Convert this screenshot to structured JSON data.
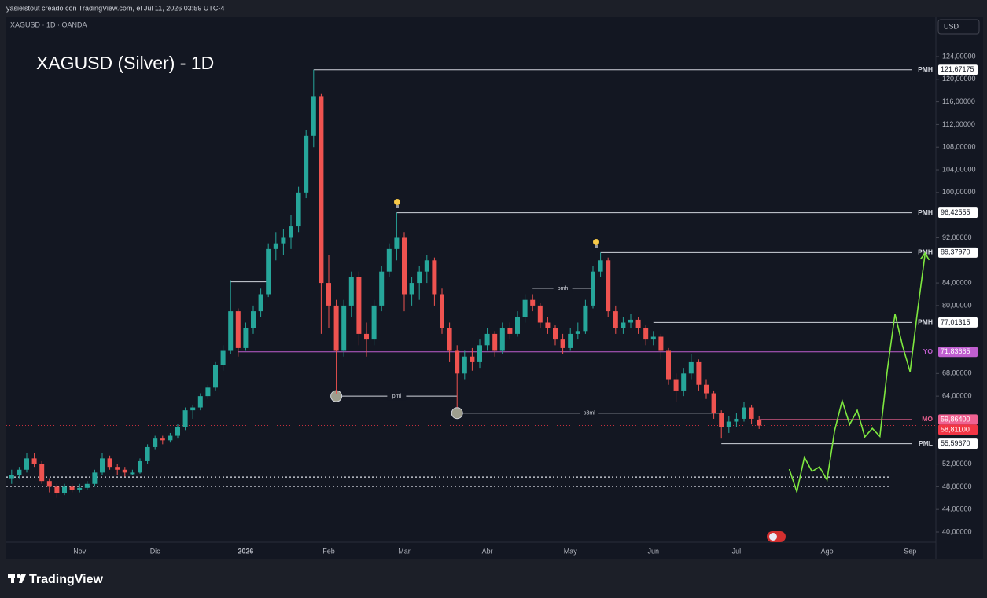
{
  "header": {
    "title": "yasielstout creado con TradingView.com, el Jul 11, 2026 03:59 UTC-4"
  },
  "symbol": "XAGUSD · 1D · OANDA",
  "currency": "USD",
  "footer": {
    "brand": "TradingView"
  },
  "chart_data": {
    "type": "candlestick",
    "title": "XAGUSD (Silver) - 1D",
    "colors": {
      "up": "#26a69a",
      "down": "#ef5350"
    },
    "categories": [
      null,
      null,
      null,
      null,
      null,
      null,
      null,
      null,
      null,
      "Nov",
      null,
      null,
      null,
      null,
      null,
      null,
      null,
      null,
      null,
      "Dic",
      null,
      null,
      null,
      null,
      null,
      null,
      null,
      null,
      null,
      null,
      null,
      "2026",
      null,
      null,
      null,
      null,
      null,
      null,
      null,
      null,
      null,
      null,
      "Feb",
      null,
      null,
      null,
      null,
      null,
      null,
      null,
      null,
      null,
      "Mar",
      null,
      null,
      null,
      null,
      null,
      null,
      null,
      null,
      null,
      null,
      "Abr",
      null,
      null,
      null,
      null,
      null,
      null,
      null,
      null,
      null,
      null,
      "May",
      null,
      null,
      null,
      null,
      null,
      null,
      null,
      null,
      null,
      null,
      "Jun",
      null,
      null,
      null,
      null,
      null,
      null,
      null,
      null,
      null,
      null,
      "Jul",
      null,
      null,
      null,
      null,
      null,
      null,
      null,
      null,
      null,
      null,
      null,
      "Ago",
      null,
      null,
      null,
      null,
      null,
      null,
      null,
      null,
      null,
      null,
      "Sep",
      null,
      null
    ],
    "ohlc": [
      [
        49.5,
        51,
        48.5,
        50
      ],
      [
        50,
        51.5,
        49.5,
        51
      ],
      [
        51,
        54,
        50.5,
        53
      ],
      [
        53,
        54,
        51.5,
        52
      ],
      [
        52,
        52.5,
        48.5,
        49
      ],
      [
        49,
        49.5,
        47,
        48
      ],
      [
        48,
        48.5,
        46,
        46.8
      ],
      [
        46.8,
        48.5,
        46.5,
        48
      ],
      [
        48,
        48.5,
        47,
        47.5
      ],
      [
        47.5,
        48.5,
        47,
        47.8
      ],
      [
        47.8,
        49,
        47.5,
        48.5
      ],
      [
        48.5,
        51,
        48,
        50.5
      ],
      [
        50.5,
        54,
        50,
        53
      ],
      [
        53,
        53.5,
        51,
        51.5
      ],
      [
        51.5,
        52,
        50,
        51
      ],
      [
        51,
        51.5,
        49.8,
        50.5
      ],
      [
        50.2,
        51,
        50,
        50.5
      ],
      [
        50.5,
        53,
        50.3,
        52.5
      ],
      [
        52.5,
        55.5,
        52,
        55
      ],
      [
        55,
        57,
        54.5,
        56.5
      ],
      [
        56.5,
        57,
        55.5,
        56.2
      ],
      [
        56.2,
        57.5,
        55.8,
        57
      ],
      [
        57,
        59,
        56.5,
        58.5
      ],
      [
        58.5,
        62,
        58,
        61.5
      ],
      [
        61.5,
        62.5,
        60,
        62
      ],
      [
        62,
        64.5,
        61.5,
        64
      ],
      [
        64,
        66,
        63.5,
        65.5
      ],
      [
        65.5,
        70,
        65,
        69.5
      ],
      [
        69.5,
        73,
        68.5,
        72
      ],
      [
        72,
        84.5,
        71.5,
        79
      ],
      [
        79,
        79.5,
        71,
        72.5
      ],
      [
        72.5,
        77,
        72,
        76
      ],
      [
        76,
        80,
        75,
        79
      ],
      [
        79,
        83,
        78,
        82
      ],
      [
        82,
        91,
        81.5,
        90
      ],
      [
        90,
        93,
        88,
        91
      ],
      [
        91,
        93.5,
        89,
        92
      ],
      [
        92,
        96,
        90,
        94
      ],
      [
        94,
        101,
        93,
        100
      ],
      [
        100,
        111,
        99,
        110
      ],
      [
        110,
        121.67,
        108,
        117
      ],
      [
        117,
        117.5,
        75,
        84
      ],
      [
        84,
        89,
        76,
        80
      ],
      [
        80,
        81,
        64.3,
        72
      ],
      [
        72,
        81,
        71,
        80
      ],
      [
        80,
        86,
        78,
        85
      ],
      [
        85,
        86,
        73,
        75
      ],
      [
        75,
        77,
        71,
        74
      ],
      [
        74,
        81,
        73,
        80
      ],
      [
        80,
        87,
        79,
        86
      ],
      [
        86,
        91,
        85,
        90
      ],
      [
        90,
        96.43,
        88,
        92
      ],
      [
        92,
        93,
        79,
        82
      ],
      [
        82,
        85,
        80,
        84
      ],
      [
        84,
        87,
        81,
        86
      ],
      [
        86,
        89,
        84,
        88
      ],
      [
        88,
        88.5,
        80,
        82
      ],
      [
        82,
        83,
        75,
        76
      ],
      [
        76,
        77,
        70,
        72
      ],
      [
        72,
        73,
        62,
        68
      ],
      [
        68,
        72,
        67,
        71
      ],
      [
        71,
        72.5,
        68.5,
        70
      ],
      [
        70,
        74,
        69,
        73
      ],
      [
        73,
        76,
        72,
        75
      ],
      [
        75,
        75.5,
        71,
        72
      ],
      [
        72,
        77,
        71.5,
        76
      ],
      [
        76,
        77,
        74,
        75
      ],
      [
        75,
        79,
        74.5,
        78
      ],
      [
        78,
        82,
        77,
        81
      ],
      [
        81,
        82,
        79,
        80
      ],
      [
        80,
        80.5,
        76,
        77
      ],
      [
        77,
        78,
        75,
        76
      ],
      [
        76,
        76.5,
        73,
        74
      ],
      [
        74,
        75,
        71.5,
        72.5
      ],
      [
        72.5,
        76,
        72,
        75
      ],
      [
        75,
        77,
        74,
        75.5
      ],
      [
        75.5,
        81,
        75,
        80
      ],
      [
        80,
        87,
        79.5,
        86
      ],
      [
        86,
        89.38,
        85,
        88
      ],
      [
        88,
        88.5,
        78,
        79
      ],
      [
        79,
        80,
        75,
        76
      ],
      [
        76,
        78,
        75,
        77
      ],
      [
        77,
        78.5,
        76,
        77.5
      ],
      [
        77.5,
        78,
        75,
        76
      ],
      [
        76,
        76.5,
        73,
        74
      ],
      [
        74,
        75.5,
        73,
        74.5
      ],
      [
        74.5,
        75,
        70.5,
        72
      ],
      [
        72,
        72.5,
        66,
        67
      ],
      [
        67,
        68,
        63,
        65
      ],
      [
        65,
        69,
        64,
        68
      ],
      [
        68,
        71.5,
        67,
        70
      ],
      [
        70,
        70.5,
        65,
        66
      ],
      [
        66,
        67,
        63.5,
        64.5
      ],
      [
        64.5,
        65,
        60,
        61
      ],
      [
        61,
        61.5,
        56.5,
        58.5
      ],
      [
        58.5,
        60.5,
        57.5,
        59.5
      ],
      [
        59.5,
        61,
        58.5,
        60
      ],
      [
        60,
        63,
        59.5,
        62
      ],
      [
        62,
        62.5,
        59,
        60
      ],
      [
        59.864,
        60.5,
        58.2,
        58.811
      ],
      null,
      null,
      null,
      null,
      null,
      null,
      null,
      null,
      null,
      null,
      null,
      null,
      null,
      null,
      null,
      null,
      null,
      null,
      null,
      null,
      null,
      null
    ],
    "projection": {
      "color": "#7ee83f",
      "values": [
        null,
        null,
        null,
        null,
        null,
        null,
        null,
        null,
        null,
        null,
        null,
        null,
        null,
        null,
        null,
        null,
        null,
        null,
        null,
        null,
        null,
        null,
        null,
        null,
        null,
        null,
        null,
        null,
        null,
        null,
        null,
        null,
        null,
        null,
        null,
        null,
        null,
        null,
        null,
        null,
        null,
        null,
        null,
        null,
        null,
        null,
        null,
        null,
        null,
        null,
        null,
        null,
        null,
        null,
        null,
        null,
        null,
        null,
        null,
        null,
        null,
        null,
        null,
        null,
        null,
        null,
        null,
        null,
        null,
        null,
        null,
        null,
        null,
        null,
        null,
        null,
        null,
        null,
        null,
        null,
        null,
        null,
        null,
        null,
        null,
        null,
        null,
        null,
        null,
        null,
        null,
        null,
        null,
        null,
        null,
        null,
        null,
        null,
        null,
        null,
        null,
        null,
        null,
        51.1,
        47.1,
        53.2,
        50.7,
        51.5,
        49.2,
        57.9,
        63.2,
        59.0,
        61.5,
        56.8,
        58.3,
        56.9,
        68.8,
        78.5,
        72.9,
        68.3,
        79.2,
        89.3
      ]
    },
    "ylim": [
      35.14,
      130.94
    ],
    "yticks": [
      {
        "value": 124,
        "label": "124,00000"
      },
      {
        "value": 120,
        "label": "120,00000"
      },
      {
        "value": 116,
        "label": "116,00000"
      },
      {
        "value": 112,
        "label": "112,00000"
      },
      {
        "value": 108,
        "label": "108,00000"
      },
      {
        "value": 104,
        "label": "104,00000"
      },
      {
        "value": 100,
        "label": "100,00000"
      },
      {
        "value": 92,
        "label": "92,00000"
      },
      {
        "value": 84,
        "label": "84,00000"
      },
      {
        "value": 80,
        "label": "80,00000"
      },
      {
        "value": 68,
        "label": "68,00000"
      },
      {
        "value": 64,
        "label": "64,00000"
      },
      {
        "value": 52,
        "label": "52,00000"
      },
      {
        "value": 48,
        "label": "48,00000"
      },
      {
        "value": 44,
        "label": "44,00000"
      },
      {
        "value": 40,
        "label": "40,00000"
      }
    ],
    "levels": [
      {
        "name": "PMH",
        "value": 121.67175,
        "label": "121,67175",
        "color": "#d1d4dc"
      },
      {
        "name": "PMH",
        "value": 96.42555,
        "label": "96,42555",
        "color": "#d1d4dc"
      },
      {
        "name": "PMH",
        "value": 89.3797,
        "label": "89,37970",
        "color": "#d1d4dc"
      },
      {
        "name": "PMH",
        "value": 77.01315,
        "label": "77,01315",
        "color": "#d1d4dc"
      },
      {
        "name": "YO",
        "value": 71.83665,
        "label": "71,83665",
        "color": "#c05fd0"
      },
      {
        "name": "MO",
        "value": 59.864,
        "label": "59,86400",
        "color": "#f06292"
      },
      {
        "name": "PML",
        "value": 55.5967,
        "label": "55,59670",
        "color": "#d1d4dc"
      }
    ],
    "last": {
      "value": 58.811,
      "label": "58,81100",
      "color": "#f23645"
    },
    "guides": [
      {
        "label": "pml",
        "value": 64.0
      },
      {
        "label": "p3ml",
        "value": 61.0
      },
      {
        "label": "pmh",
        "value": 83.05
      },
      {
        "value": 84.2
      }
    ],
    "dotted_levels": [
      49.7,
      48.05
    ]
  }
}
